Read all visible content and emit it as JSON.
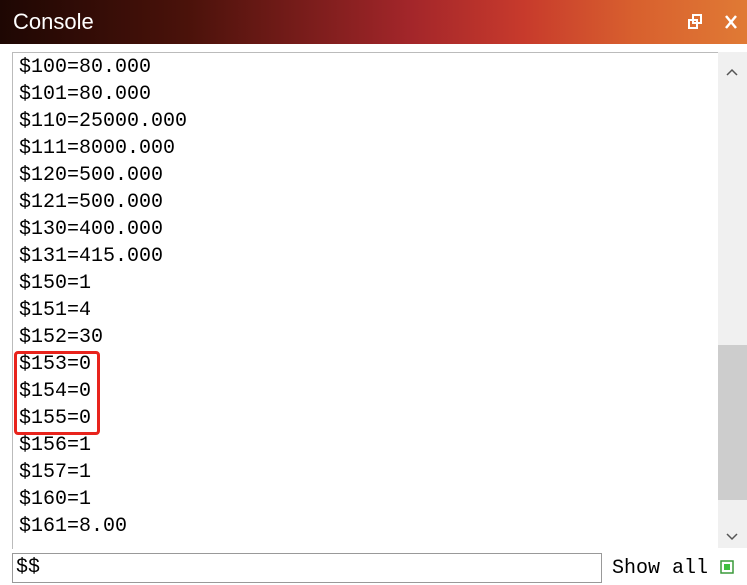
{
  "header": {
    "title": "Console"
  },
  "lines": [
    "$100=80.000",
    "$101=80.000",
    "$110=25000.000",
    "$111=8000.000",
    "$120=500.000",
    "$121=500.000",
    "$130=400.000",
    "$131=415.000",
    "$150=1",
    "$151=4",
    "$152=30",
    "$153=0",
    "$154=0",
    "$155=0",
    "$156=1",
    "$157=1",
    "$160=1",
    "$161=8.00"
  ],
  "input": {
    "value": "$$"
  },
  "show_all": {
    "label": "Show all"
  }
}
